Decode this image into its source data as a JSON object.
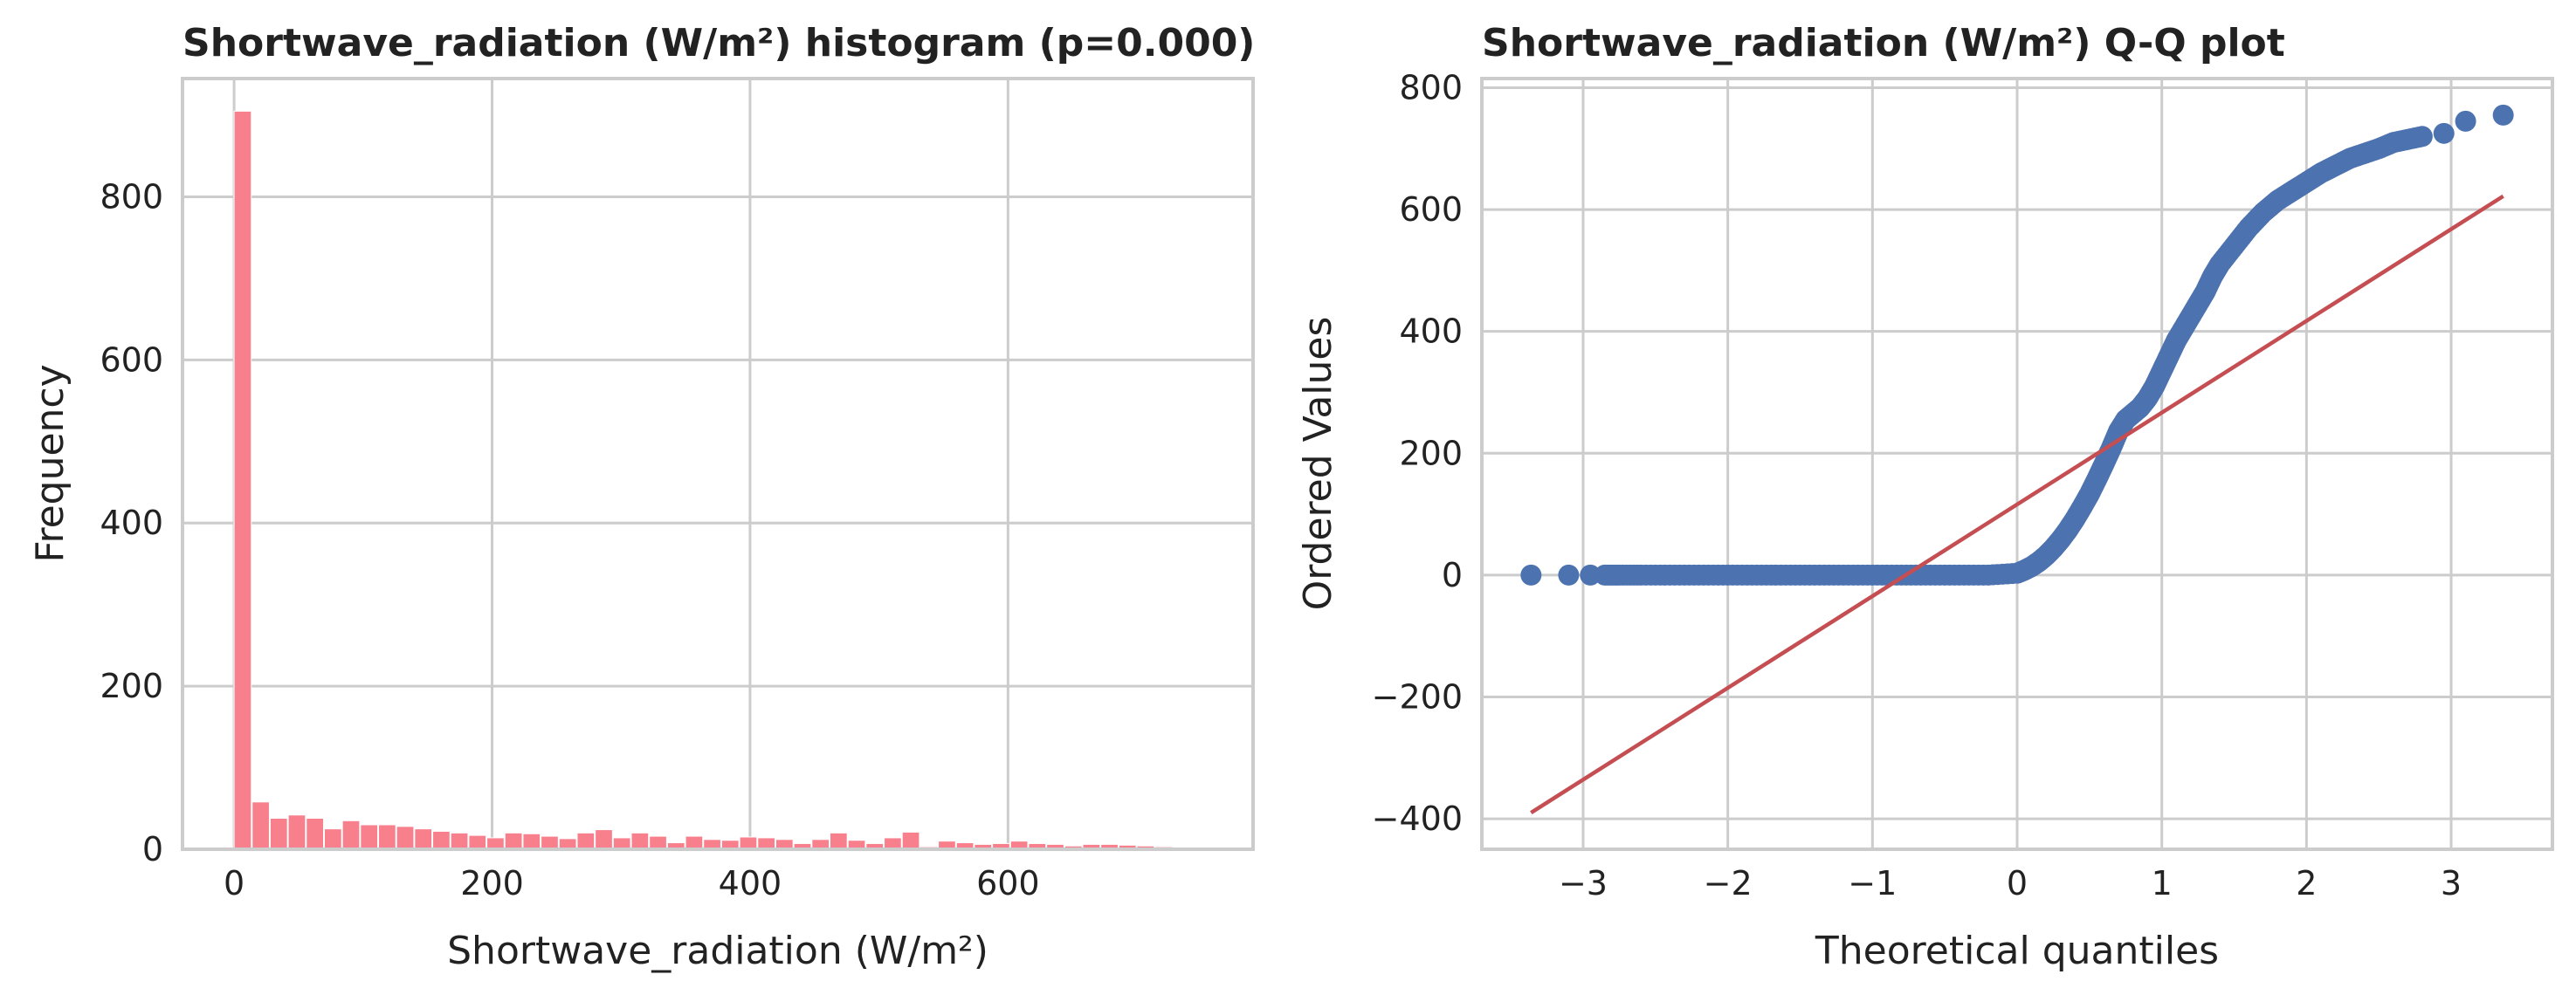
{
  "chart_data": [
    {
      "type": "bar",
      "title": "Shortwave_radiation (W/m²) histogram (p=0.000)",
      "xlabel": "Shortwave_radiation (W/m²)",
      "ylabel": "Frequency",
      "xlim": [
        -40,
        790
      ],
      "ylim": [
        0,
        945
      ],
      "xticks": [
        0,
        200,
        400,
        600
      ],
      "yticks": [
        0,
        200,
        400,
        600,
        800
      ],
      "grid": true,
      "color": "#f87f8c",
      "bin_width": 14,
      "bin_start": 0,
      "values": [
        905,
        58,
        38,
        42,
        38,
        25,
        35,
        30,
        30,
        28,
        25,
        22,
        20,
        17,
        14,
        20,
        19,
        16,
        13,
        20,
        24,
        14,
        20,
        16,
        8,
        16,
        12,
        11,
        15,
        14,
        12,
        7,
        12,
        20,
        11,
        7,
        14,
        21,
        3,
        10,
        8,
        6,
        7,
        10,
        7,
        6,
        4,
        6,
        6,
        5,
        4,
        3
      ]
    },
    {
      "type": "scatter",
      "title": "Shortwave_radiation (W/m²) Q-Q plot",
      "xlabel": "Theoretical quantiles",
      "ylabel": "Ordered Values",
      "xlim": [
        -3.7,
        3.7
      ],
      "ylim": [
        -450,
        815
      ],
      "xticks": [
        -3,
        -2,
        -1,
        0,
        1,
        2,
        3
      ],
      "xtick_labels": [
        "−3",
        "−2",
        "−1",
        "0",
        "1",
        "2",
        "3"
      ],
      "yticks": [
        -400,
        -200,
        0,
        200,
        400,
        600,
        800
      ],
      "ytick_labels": [
        "−400",
        "−200",
        "0",
        "200",
        "400",
        "600",
        "800"
      ],
      "grid": true,
      "point_color": "#4c72b0",
      "line_color": "#c44e52",
      "points_x": [
        -3.36,
        -3.1,
        -2.95,
        -2.85,
        -2.75,
        -2.6,
        -2.4,
        -2.2,
        -2.0,
        -1.8,
        -1.6,
        -1.4,
        -1.2,
        -1.0,
        -0.8,
        -0.6,
        -0.4,
        -0.2,
        0.0,
        0.05,
        0.1,
        0.15,
        0.2,
        0.25,
        0.3,
        0.35,
        0.4,
        0.45,
        0.5,
        0.55,
        0.6,
        0.65,
        0.7,
        0.75,
        0.8,
        0.85,
        0.9,
        0.95,
        1.0,
        1.05,
        1.1,
        1.15,
        1.2,
        1.25,
        1.3,
        1.35,
        1.4,
        1.5,
        1.6,
        1.7,
        1.8,
        1.9,
        2.0,
        2.1,
        2.2,
        2.3,
        2.4,
        2.5,
        2.6,
        2.7,
        2.8,
        2.95,
        3.1,
        3.36
      ],
      "points_y": [
        0,
        0,
        0,
        0,
        0,
        0,
        0,
        0,
        0,
        0,
        0,
        0,
        0,
        0,
        0,
        0,
        0,
        0,
        3,
        8,
        14,
        22,
        32,
        44,
        58,
        74,
        92,
        112,
        133,
        157,
        182,
        208,
        236,
        255,
        265,
        275,
        290,
        310,
        335,
        360,
        385,
        405,
        425,
        445,
        465,
        490,
        510,
        540,
        570,
        595,
        615,
        630,
        645,
        660,
        672,
        684,
        692,
        700,
        710,
        715,
        720,
        725,
        745,
        755
      ],
      "fit_line": {
        "x": [
          -3.36,
          3.36
        ],
        "y": [
          -390,
          622
        ]
      }
    }
  ]
}
